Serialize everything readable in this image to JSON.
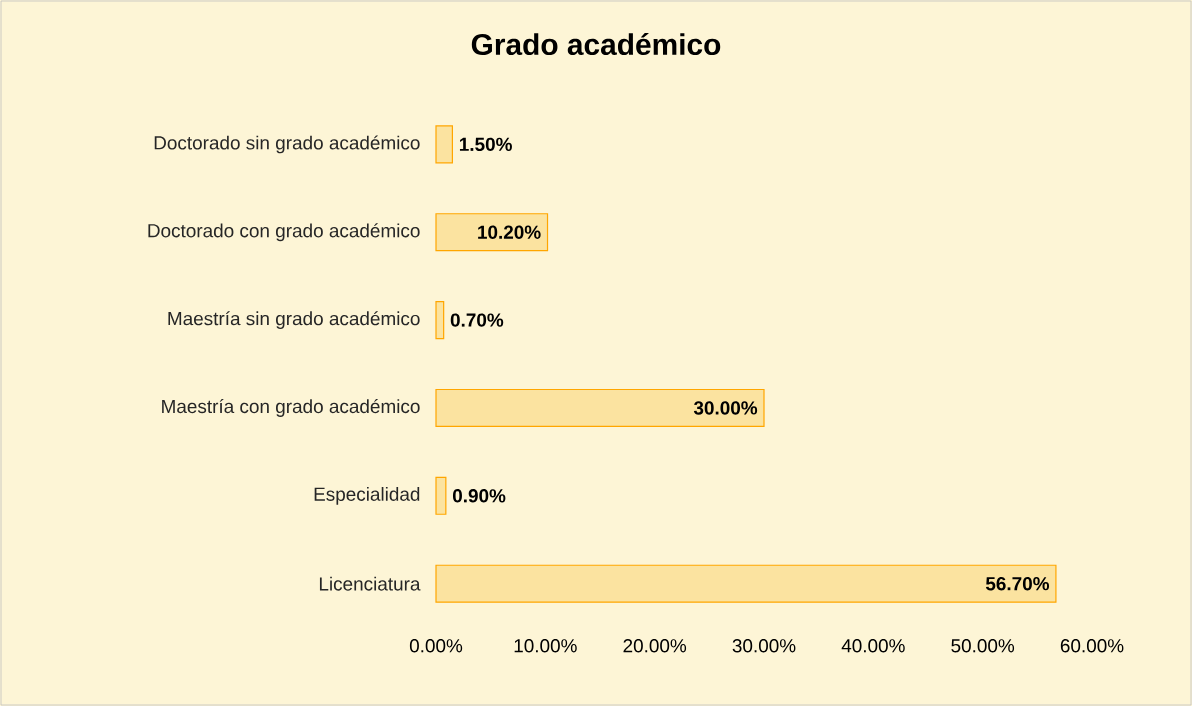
{
  "chart_data": {
    "type": "bar",
    "orientation": "horizontal",
    "title": "Grado académico",
    "categories": [
      "Doctorado sin grado académico",
      "Doctorado con grado académico",
      "Maestría sin grado académico",
      "Maestría con grado académico",
      "Especialidad",
      "Licenciatura"
    ],
    "values": [
      1.5,
      10.2,
      0.7,
      30,
      0.9,
      56.7
    ],
    "value_labels": [
      "1.50%",
      "10.20%",
      "0.70%",
      "30.00%",
      "0.90%",
      "56.70%"
    ],
    "color": "#fbe3a0",
    "xlim": [
      0,
      60
    ],
    "xticks": [
      {
        "value": 0,
        "label": "0.00%"
      },
      {
        "value": 10,
        "label": "10.00%"
      },
      {
        "value": 20,
        "label": "20.00%"
      },
      {
        "value": 30,
        "label": "30.00%"
      },
      {
        "value": 40,
        "label": "40.00%"
      },
      {
        "value": 50,
        "label": "50.00%"
      },
      {
        "value": 60,
        "label": "60.00%"
      }
    ]
  }
}
